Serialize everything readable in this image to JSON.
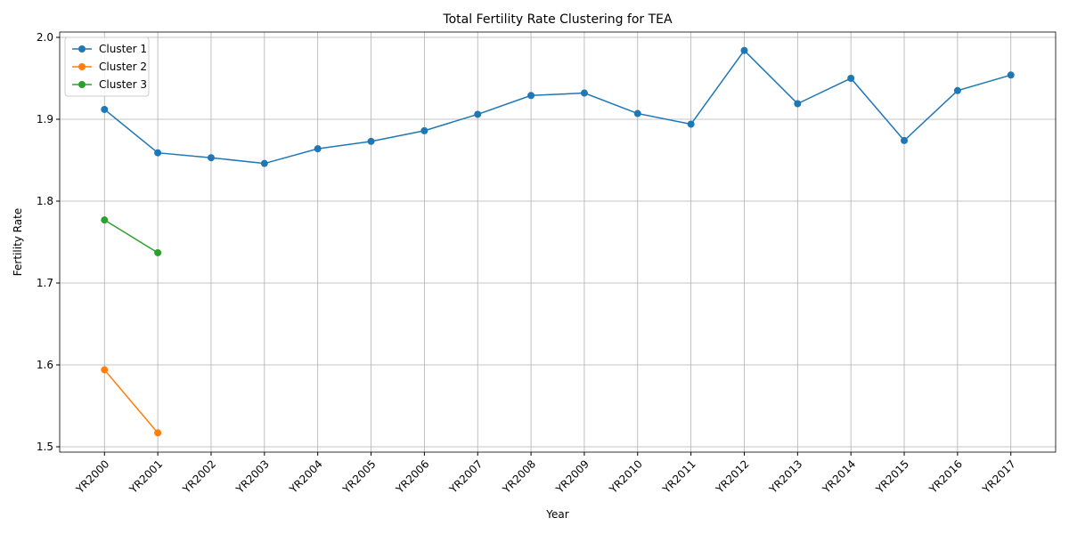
{
  "chart_data": {
    "type": "line",
    "title": "Total Fertility Rate Clustering for TEA",
    "x_label": "Year",
    "y_label": "Fertility Rate",
    "categories": [
      "YR2000",
      "YR2001",
      "YR2002",
      "YR2003",
      "YR2004",
      "YR2005",
      "YR2006",
      "YR2007",
      "YR2008",
      "YR2009",
      "YR2010",
      "YR2011",
      "YR2012",
      "YR2013",
      "YR2014",
      "YR2015",
      "YR2016",
      "YR2017"
    ],
    "series": [
      {
        "name": "Cluster 1",
        "color": "#1f77b4",
        "values": [
          1.912,
          1.859,
          1.853,
          1.846,
          1.864,
          1.873,
          1.886,
          1.906,
          1.929,
          1.932,
          1.907,
          1.894,
          1.984,
          1.919,
          1.95,
          1.874,
          1.935,
          1.954
        ]
      },
      {
        "name": "Cluster 2",
        "color": "#ff7f0e",
        "values": [
          1.594,
          1.517,
          null,
          null,
          null,
          null,
          null,
          null,
          null,
          null,
          null,
          null,
          null,
          null,
          null,
          null,
          null,
          null
        ]
      },
      {
        "name": "Cluster 3",
        "color": "#2ca02c",
        "values": [
          1.777,
          1.737,
          null,
          null,
          null,
          null,
          null,
          null,
          null,
          null,
          null,
          null,
          null,
          null,
          null,
          null,
          null,
          null
        ]
      }
    ],
    "ylim": [
      1.4935,
      2.0065
    ],
    "yticks": [
      1.5,
      1.6,
      1.7,
      1.8,
      1.9,
      {
        "value": 2.0,
        "label": "2.0"
      }
    ],
    "grid": true,
    "legend": "upper left"
  }
}
